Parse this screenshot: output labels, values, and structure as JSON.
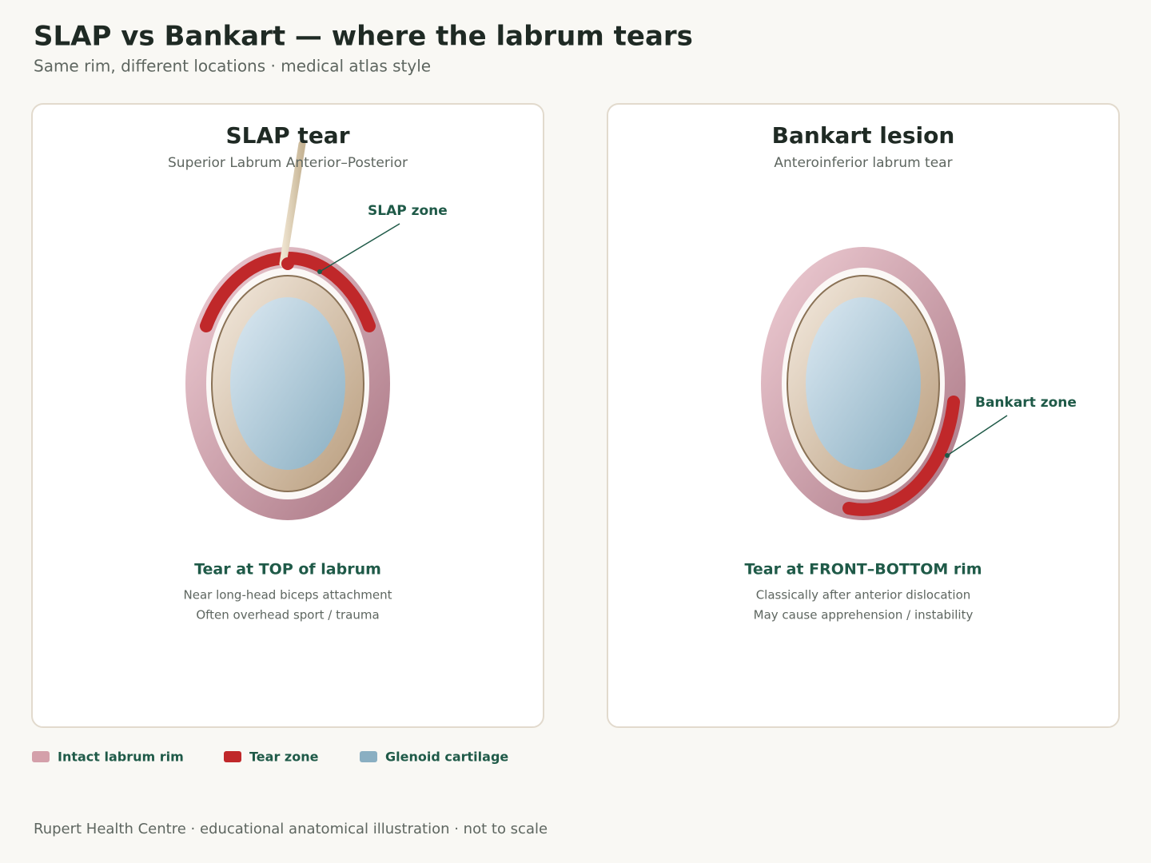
{
  "header": {
    "title": "SLAP vs Bankart — where the labrum tears",
    "subtitle": "Same rim, different locations · medical atlas style"
  },
  "panels": [
    {
      "title": "SLAP tear",
      "subtitle": "Superior Labrum Anterior–Posterior",
      "zone_label": "SLAP zone",
      "caption": "Tear at TOP of labrum",
      "notes": [
        "Near long-head biceps attachment",
        "Often overhead sport / trauma"
      ]
    },
    {
      "title": "Bankart lesion",
      "subtitle": "Anteroinferior labrum tear",
      "zone_label": "Bankart zone",
      "caption": "Tear at FRONT–BOTTOM rim",
      "notes": [
        "Classically after anterior dislocation",
        "May cause apprehension / instability"
      ]
    }
  ],
  "legend": [
    "Intact labrum rim",
    "Tear zone",
    "Glenoid cartilage"
  ],
  "footer": "Rupert Health Centre · educational anatomical illustration · not to scale"
}
